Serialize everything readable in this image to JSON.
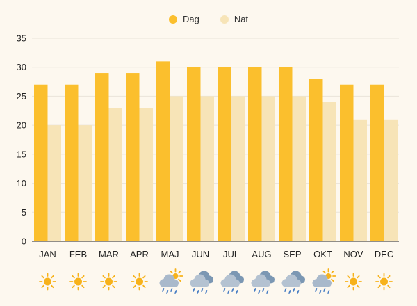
{
  "colors": {
    "dag": "#fbbf2d",
    "nat": "#f7e4b7",
    "grid": "#e9e4da",
    "axis": "#222222",
    "sun": "#f7b21b",
    "cloud": "#7b97b3",
    "rain": "#4a7fc4"
  },
  "chart_data": {
    "type": "bar",
    "categories": [
      "JAN",
      "FEB",
      "MAR",
      "APR",
      "MAJ",
      "JUN",
      "JUL",
      "AUG",
      "SEP",
      "OKT",
      "NOV",
      "DEC"
    ],
    "series": [
      {
        "name": "Dag",
        "values": [
          27,
          27,
          29,
          29,
          31,
          30,
          30,
          30,
          30,
          28,
          27,
          27
        ]
      },
      {
        "name": "Nat",
        "values": [
          20,
          20,
          23,
          23,
          25,
          25,
          25,
          25,
          25,
          24,
          21,
          21
        ]
      }
    ],
    "ylim": [
      0,
      35
    ],
    "yticks": [
      "0",
      "5",
      "10",
      "15",
      "20",
      "25",
      "30",
      "35"
    ],
    "grid": true,
    "legend_position": "top-center",
    "weather_icons": [
      "sun-icon",
      "sun-icon",
      "sun-icon",
      "sun-icon",
      "sun-rain-icon",
      "cloud-rain-icon",
      "cloud-rain-icon",
      "cloud-rain-icon",
      "cloud-rain-icon",
      "sun-rain-icon",
      "sun-icon",
      "sun-icon"
    ]
  }
}
